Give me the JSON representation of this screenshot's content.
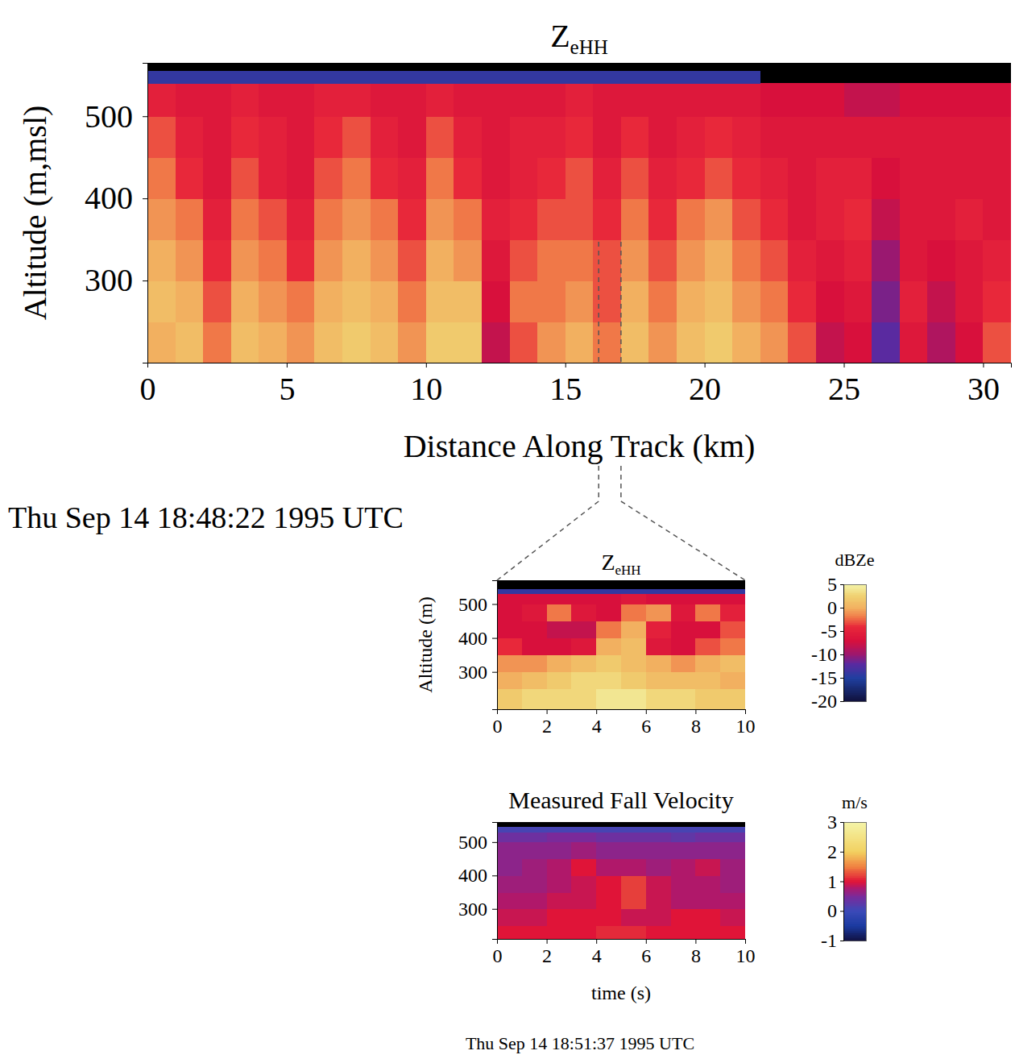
{
  "chart_data": [
    {
      "type": "heatmap",
      "title": "ZeHH",
      "xlabel": "Distance Along Track (km)",
      "ylabel": "Altitude (m,msl)",
      "annotations": [
        "Thu Sep 14 18:48:22 1995 UTC"
      ],
      "xlim": [
        0,
        31
      ],
      "ylim": [
        200,
        565
      ],
      "xticks": [
        0,
        5,
        10,
        15,
        20,
        25,
        30
      ],
      "yticks": [
        300,
        400,
        500
      ],
      "x_edges": [
        0,
        1,
        2,
        3,
        4,
        5,
        6,
        7,
        8,
        9,
        10,
        11,
        12,
        13,
        14,
        15,
        16,
        17,
        18,
        19,
        20,
        21,
        22,
        23,
        24,
        25,
        26,
        27,
        28,
        29,
        30,
        31
      ],
      "y_edges": [
        200,
        250,
        300,
        350,
        400,
        450,
        500,
        540,
        555
      ],
      "z": [
        [
          0,
          1,
          -2,
          1,
          0,
          -1,
          1,
          2,
          1,
          -1,
          2,
          2,
          -8,
          -3,
          -1,
          0,
          -2,
          1,
          -1,
          1,
          2,
          0,
          -1,
          -3,
          -8,
          -7,
          -12,
          -6,
          -9,
          -7,
          -3
        ],
        [
          1,
          0,
          -3,
          0,
          -1,
          -2,
          0,
          1,
          0,
          -2,
          1,
          1,
          -7,
          -2,
          -2,
          -1,
          -3,
          0,
          -2,
          0,
          1,
          -1,
          -2,
          -4,
          -7,
          -6,
          -11,
          -5,
          -8,
          -6,
          -4
        ],
        [
          0,
          -1,
          -4,
          -1,
          -2,
          -4,
          -1,
          0,
          -1,
          -3,
          0,
          -1,
          -6,
          -3,
          -2,
          -2,
          -3,
          -1,
          -3,
          -1,
          0,
          -2,
          -3,
          -5,
          -6,
          -5,
          -10,
          -6,
          -7,
          -6,
          -5
        ],
        [
          -1,
          -2,
          -5,
          -2,
          -3,
          -5,
          -2,
          -1,
          -2,
          -4,
          -1,
          -2,
          -5,
          -4,
          -3,
          -3,
          -4,
          -2,
          -4,
          -2,
          -1,
          -3,
          -4,
          -6,
          -5,
          -4,
          -8,
          -6,
          -6,
          -5,
          -6
        ],
        [
          -2,
          -4,
          -6,
          -3,
          -5,
          -6,
          -3,
          -2,
          -4,
          -5,
          -2,
          -4,
          -6,
          -5,
          -4,
          -3,
          -5,
          -3,
          -5,
          -4,
          -3,
          -4,
          -5,
          -6,
          -5,
          -5,
          -7,
          -6,
          -6,
          -6,
          -6
        ],
        [
          -3,
          -5,
          -6,
          -4,
          -5,
          -6,
          -4,
          -3,
          -5,
          -6,
          -3,
          -5,
          -6,
          -5,
          -5,
          -4,
          -6,
          -4,
          -6,
          -5,
          -4,
          -5,
          -6,
          -6,
          -6,
          -6,
          -6,
          -6,
          -6,
          -6,
          -6
        ],
        [
          -5,
          -6,
          -6,
          -5,
          -6,
          -6,
          -5,
          -5,
          -6,
          -6,
          -5,
          -6,
          -6,
          -6,
          -6,
          -5,
          -6,
          -6,
          -6,
          -6,
          -6,
          -6,
          -7,
          -7,
          -7,
          -8,
          -8,
          -7,
          -7,
          -7,
          -7
        ],
        [
          -14,
          -14,
          -14,
          -14,
          -14,
          -14,
          -14,
          -14,
          -14,
          -14,
          -14,
          -14,
          -14,
          -14,
          -14,
          -14,
          -14,
          -14,
          -14,
          -14,
          -14,
          -14,
          null,
          null,
          null,
          null,
          null,
          null,
          null,
          null,
          null
        ]
      ],
      "zlim": [
        -20,
        5
      ],
      "zoom_range": [
        16.2,
        17.0
      ]
    },
    {
      "type": "heatmap",
      "title": "ZeHH",
      "ylabel": "Altitude (m)",
      "xlim": [
        0,
        10
      ],
      "ylim": [
        190,
        570
      ],
      "xticks": [
        0,
        2,
        4,
        6,
        8,
        10
      ],
      "yticks": [
        300,
        400,
        500
      ],
      "x_edges": [
        0,
        1,
        2,
        3,
        4,
        5,
        6,
        7,
        8,
        9,
        10
      ],
      "y_edges": [
        190,
        250,
        300,
        350,
        400,
        450,
        500,
        530,
        545
      ],
      "z": [
        [
          2,
          3,
          3,
          3,
          4,
          4,
          3,
          3,
          2,
          2
        ],
        [
          0,
          1,
          2,
          3,
          3,
          2,
          1,
          1,
          1,
          0
        ],
        [
          -1,
          -1,
          0,
          1,
          2,
          1,
          0,
          -1,
          0,
          1
        ],
        [
          -4,
          -7,
          -7,
          -6,
          0,
          1,
          -6,
          -7,
          -3,
          -2
        ],
        [
          -7,
          -7,
          -8,
          -8,
          -2,
          0,
          -5,
          -7,
          -7,
          -3
        ],
        [
          -7,
          -6,
          -2,
          -6,
          -7,
          -2,
          -1,
          -6,
          -2,
          -5
        ],
        [
          -7,
          -7,
          -7,
          -7,
          -7,
          -6,
          -7,
          -7,
          -7,
          -7
        ],
        [
          -14,
          -14,
          -14,
          -14,
          -14,
          -14,
          -14,
          -14,
          -14,
          -14
        ]
      ],
      "colorbar": {
        "label": "dBZe",
        "range": [
          -20,
          5
        ],
        "ticks": [
          5,
          0,
          -5,
          -10,
          -15,
          -20
        ]
      }
    },
    {
      "type": "heatmap",
      "title": "Measured Fall Velocity",
      "xlabel": "time (s)",
      "annotations": [
        "Thu Sep 14 18:51:37 1995 UTC"
      ],
      "xlim": [
        0,
        10
      ],
      "ylim": [
        210,
        560
      ],
      "xticks": [
        0,
        2,
        4,
        6,
        8,
        10
      ],
      "yticks": [
        300,
        400,
        500
      ],
      "x_edges": [
        0,
        1,
        2,
        3,
        4,
        5,
        6,
        7,
        8,
        9,
        10
      ],
      "y_edges": [
        210,
        250,
        300,
        350,
        400,
        450,
        500,
        530,
        545
      ],
      "z": [
        [
          1,
          1,
          1,
          1,
          1.1,
          1.1,
          1,
          1,
          1,
          1
        ],
        [
          0.9,
          0.9,
          1,
          1,
          1,
          0.9,
          0.9,
          1,
          1,
          0.9
        ],
        [
          0.8,
          0.8,
          0.9,
          0.9,
          1,
          1.2,
          0.9,
          0.8,
          0.8,
          0.8
        ],
        [
          0.7,
          0.7,
          0.8,
          0.9,
          1,
          1.2,
          0.9,
          0.8,
          0.8,
          0.7
        ],
        [
          0.6,
          0.7,
          0.8,
          1,
          0.8,
          0.8,
          0.7,
          0.8,
          0.9,
          0.7
        ],
        [
          0.6,
          0.6,
          0.6,
          0.7,
          0.6,
          0.6,
          0.6,
          0.6,
          0.6,
          0.6
        ],
        [
          0.4,
          0.4,
          0.5,
          0.5,
          0.4,
          0.4,
          0.4,
          0.3,
          0.4,
          0.4
        ],
        [
          0.1,
          0.1,
          0.1,
          0.1,
          0.1,
          0.1,
          0.1,
          0.1,
          0.1,
          0.1
        ]
      ],
      "colorbar": {
        "label": "m/s",
        "range": [
          -1,
          3
        ],
        "ticks": [
          3,
          2,
          1,
          0,
          -1
        ]
      }
    }
  ]
}
